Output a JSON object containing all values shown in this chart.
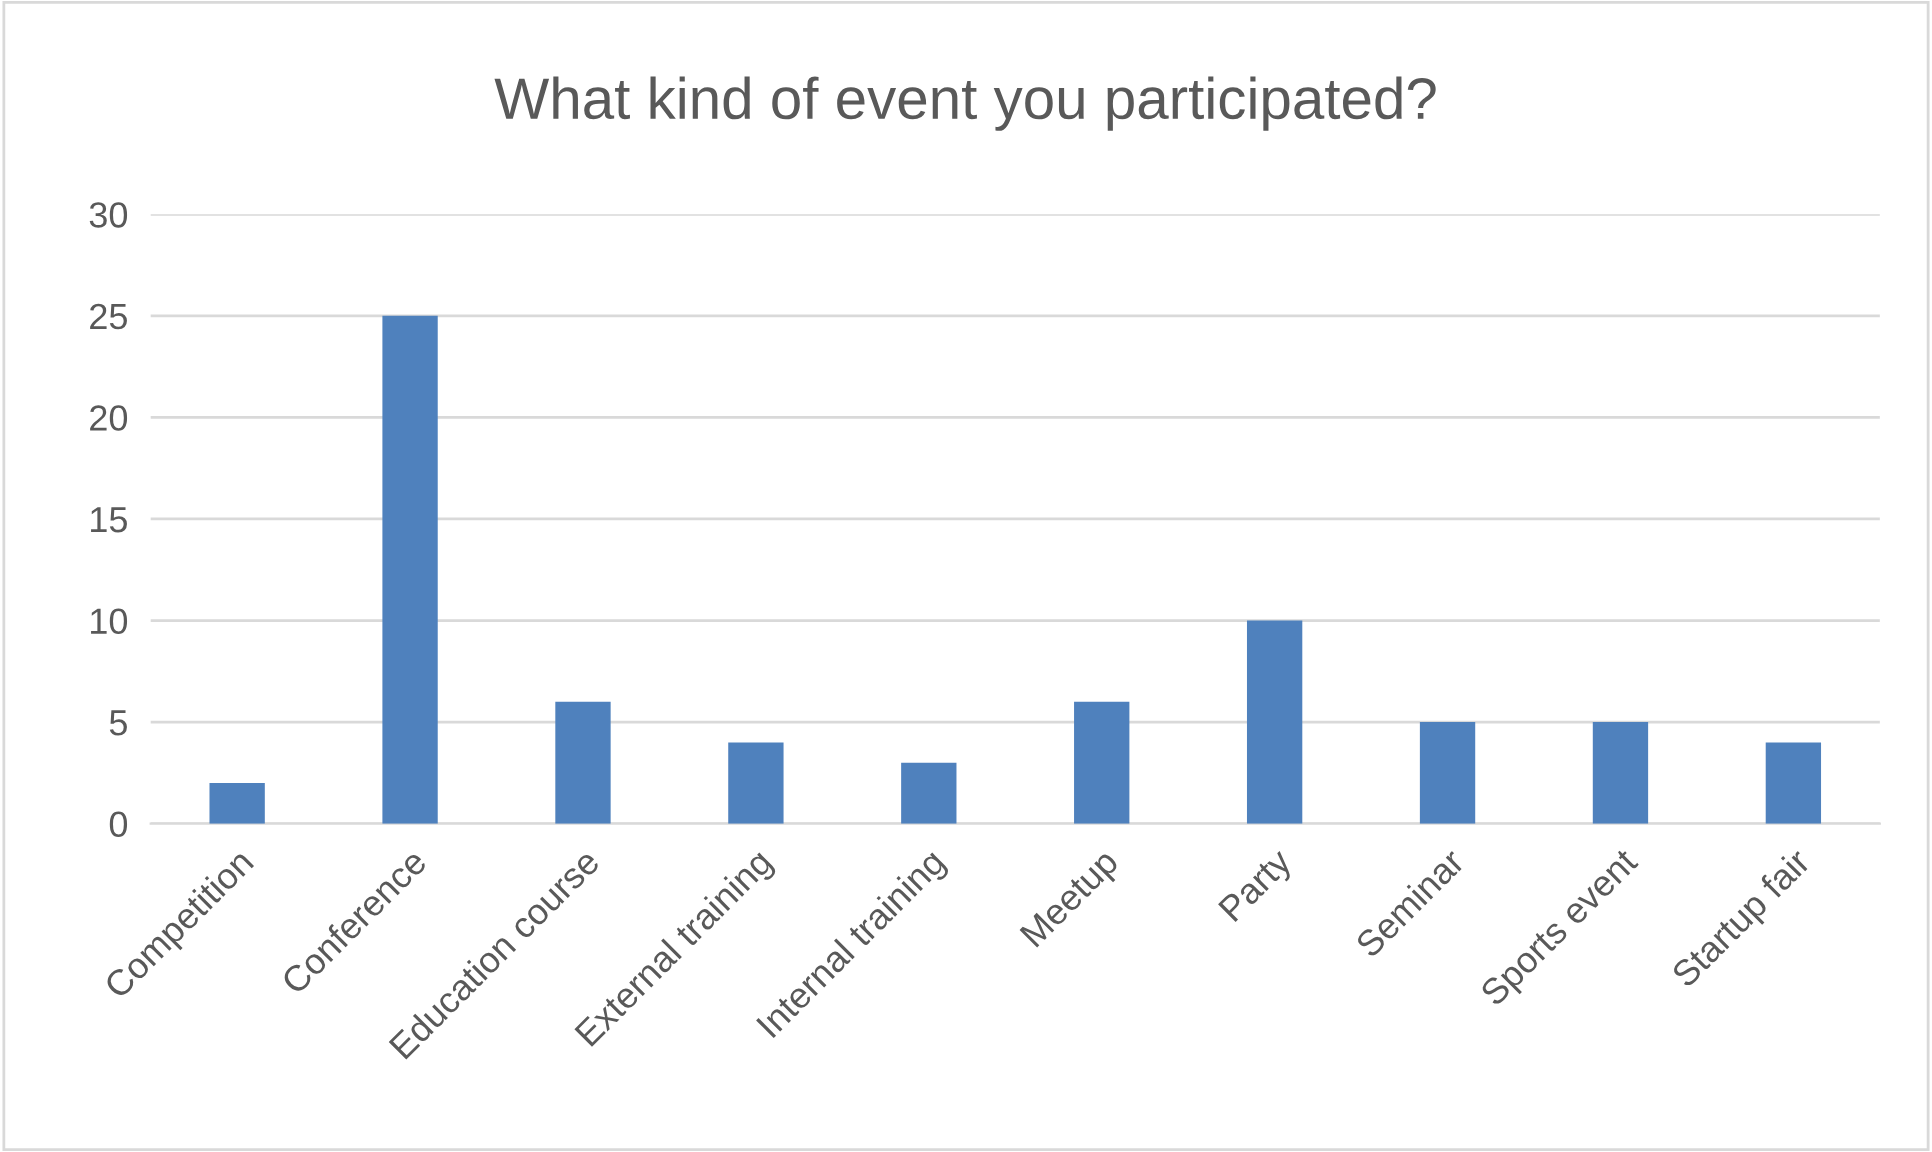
{
  "chart_data": {
    "type": "bar",
    "title": "What kind of event you participated?",
    "categories": [
      "Competition",
      "Conference",
      "Education course",
      "External training",
      "Internal training",
      "Meetup",
      "Party",
      "Seminar",
      "Sports event",
      "Startup fair"
    ],
    "values": [
      2,
      25,
      6,
      4,
      3,
      6,
      10,
      5,
      5,
      4
    ],
    "color": "#4f81bd",
    "ylim": [
      0,
      30
    ],
    "yticks": [
      0,
      5,
      10,
      15,
      20,
      25,
      30
    ],
    "grid": "y"
  }
}
